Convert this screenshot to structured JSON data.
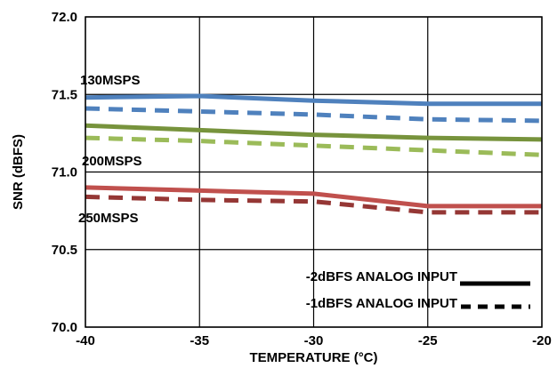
{
  "chart_data": {
    "type": "line",
    "title": "",
    "xlabel": "TEMPERATURE (°C)",
    "ylabel": "SNR (dBFS)",
    "xlim": [
      -40,
      -20
    ],
    "ylim": [
      70.0,
      72.0
    ],
    "x_ticks": [
      "-40",
      "-35",
      "-30",
      "-25",
      "-20"
    ],
    "y_ticks": [
      "70.0",
      "70.5",
      "71.0",
      "71.5",
      "72.0"
    ],
    "grid": true,
    "x": [
      -40,
      -35,
      -30,
      -25,
      -20
    ],
    "series": [
      {
        "color": "#4f81bd",
        "dash": "solid",
        "values": [
          71.48,
          71.49,
          71.46,
          71.44,
          71.44
        ]
      },
      {
        "color": "#4f81bd",
        "dash": "dashed",
        "values": [
          71.41,
          71.39,
          71.37,
          71.34,
          71.33
        ]
      },
      {
        "color": "#77933c",
        "dash": "solid",
        "values": [
          71.3,
          71.27,
          71.24,
          71.22,
          71.21
        ]
      },
      {
        "color": "#9bbb59",
        "dash": "dashed",
        "values": [
          71.22,
          71.2,
          71.17,
          71.14,
          71.11
        ]
      },
      {
        "color": "#c0504d",
        "dash": "solid",
        "values": [
          70.9,
          70.88,
          70.86,
          70.78,
          70.78
        ]
      },
      {
        "color": "#953735",
        "dash": "dashed",
        "values": [
          70.84,
          70.82,
          70.81,
          70.74,
          70.74
        ]
      }
    ],
    "annotations": [
      {
        "text": "130MSPS"
      },
      {
        "text": "200MSPS"
      },
      {
        "text": "250MSPS"
      }
    ],
    "legend": {
      "placement": "bottom-right",
      "entries": [
        {
          "label": "-2dBFS ANALOG INPUT",
          "style": "solid"
        },
        {
          "label": "-1dBFS ANALOG INPUT",
          "style": "dashed"
        }
      ]
    }
  }
}
